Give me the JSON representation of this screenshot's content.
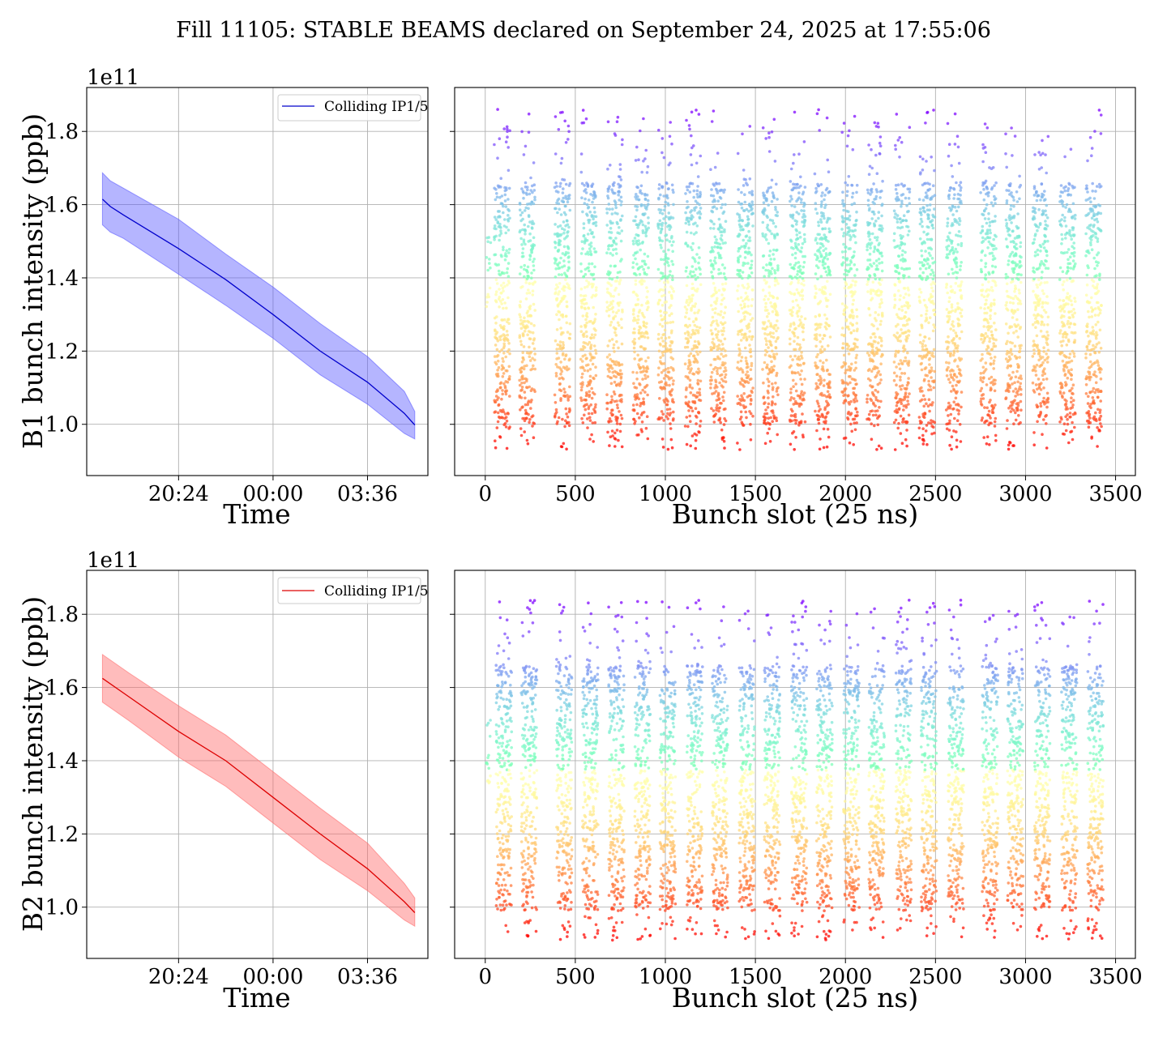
{
  "figure": {
    "title": "Fill 11105: STABLE BEAMS declared on September 24, 2025 at 17:55:06"
  },
  "chart_data": [
    {
      "id": "b1-time",
      "type": "line",
      "xlabel": "Time",
      "ylabel": "B1 bunch intensity (ppb)",
      "y_offset_label": "1e11",
      "x_ticks": [
        "20:24",
        "00:00",
        "03:36"
      ],
      "x_tick_hours": [
        20.4,
        24.0,
        27.6
      ],
      "xlim_hours": [
        16.9,
        29.9
      ],
      "ylim": [
        0.86,
        1.92
      ],
      "y_ticks": [
        "1.0",
        "1.2",
        "1.4",
        "1.6",
        "1.8"
      ],
      "y_tick_values": [
        1.0,
        1.2,
        1.4,
        1.6,
        1.8
      ],
      "grid": true,
      "legend": {
        "placement": "top-right",
        "entries": [
          "Colliding IP1/5"
        ]
      },
      "series": [
        {
          "name": "Colliding IP1/5",
          "color": "#0000cc",
          "band_color": "#5c5cff",
          "x_hours": [
            17.5,
            17.8,
            18.3,
            20.4,
            22.2,
            24.0,
            25.8,
            27.6,
            29.0,
            29.4
          ],
          "mean": [
            1.615,
            1.595,
            1.572,
            1.48,
            1.395,
            1.3,
            1.2,
            1.115,
            1.03,
            0.998
          ],
          "upper": [
            1.687,
            1.665,
            1.645,
            1.56,
            1.465,
            1.375,
            1.275,
            1.185,
            1.09,
            1.035
          ],
          "lower": [
            1.545,
            1.525,
            1.508,
            1.41,
            1.325,
            1.235,
            1.135,
            1.055,
            0.975,
            0.96
          ]
        }
      ]
    },
    {
      "id": "b1-slot",
      "type": "scatter",
      "xlabel": "Bunch slot (25 ns)",
      "xlim": [
        -170,
        3610
      ],
      "ylim": [
        0.86,
        1.92
      ],
      "x_ticks": [
        0,
        500,
        1000,
        1500,
        2000,
        2500,
        3000,
        3500
      ],
      "y_tick_values": [
        1.0,
        1.2,
        1.4,
        1.6,
        1.8
      ],
      "grid": true,
      "colormap": "rainbow",
      "color_by": "intensity",
      "trains_start_slots": [
        50,
        190,
        385,
        530,
        675,
        820,
        960,
        1110,
        1250,
        1400,
        1540,
        1690,
        1830,
        1980,
        2120,
        2270,
        2410,
        2560,
        2750,
        2890,
        3040,
        3190,
        3335
      ],
      "train_length_slots": 85,
      "pilot_slots": [
        5,
        10,
        15,
        20,
        25
      ],
      "intensity_range": [
        0.93,
        1.86
      ],
      "bulk_range": [
        1.0,
        1.66
      ]
    },
    {
      "id": "b2-time",
      "type": "line",
      "xlabel": "Time",
      "ylabel": "B2 bunch intensity (ppb)",
      "y_offset_label": "1e11",
      "x_ticks": [
        "20:24",
        "00:00",
        "03:36"
      ],
      "x_tick_hours": [
        20.4,
        24.0,
        27.6
      ],
      "xlim_hours": [
        16.9,
        29.9
      ],
      "ylim": [
        0.86,
        1.92
      ],
      "y_ticks": [
        "1.0",
        "1.2",
        "1.4",
        "1.6",
        "1.8"
      ],
      "y_tick_values": [
        1.0,
        1.2,
        1.4,
        1.6,
        1.8
      ],
      "grid": true,
      "legend": {
        "placement": "top-right",
        "entries": [
          "Colliding IP1/5"
        ]
      },
      "series": [
        {
          "name": "Colliding IP1/5",
          "color": "#dd0000",
          "band_color": "#ff6a6a",
          "x_hours": [
            17.5,
            18.5,
            20.4,
            22.2,
            24.0,
            25.8,
            27.6,
            29.0,
            29.4
          ],
          "mean": [
            1.625,
            1.575,
            1.48,
            1.4,
            1.3,
            1.2,
            1.105,
            1.015,
            0.985
          ],
          "upper": [
            1.69,
            1.64,
            1.55,
            1.47,
            1.37,
            1.27,
            1.175,
            1.065,
            1.025
          ],
          "lower": [
            1.56,
            1.51,
            1.41,
            1.33,
            1.23,
            1.13,
            1.045,
            0.965,
            0.948
          ]
        }
      ]
    },
    {
      "id": "b2-slot",
      "type": "scatter",
      "xlabel": "Bunch slot (25 ns)",
      "xlim": [
        -170,
        3610
      ],
      "ylim": [
        0.86,
        1.92
      ],
      "x_ticks": [
        0,
        500,
        1000,
        1500,
        2000,
        2500,
        3000,
        3500
      ],
      "y_tick_values": [
        1.0,
        1.2,
        1.4,
        1.6,
        1.8
      ],
      "grid": true,
      "colormap": "rainbow",
      "color_by": "intensity",
      "trains_start_slots": [
        60,
        200,
        395,
        540,
        685,
        830,
        970,
        1120,
        1260,
        1410,
        1550,
        1700,
        1840,
        1990,
        2130,
        2280,
        2420,
        2570,
        2760,
        2900,
        3050,
        3200,
        3345
      ],
      "train_length_slots": 85,
      "pilot_slots": [
        5,
        10,
        15,
        20,
        25
      ],
      "intensity_range": [
        0.91,
        1.84
      ],
      "bulk_range": [
        0.99,
        1.66
      ]
    }
  ]
}
